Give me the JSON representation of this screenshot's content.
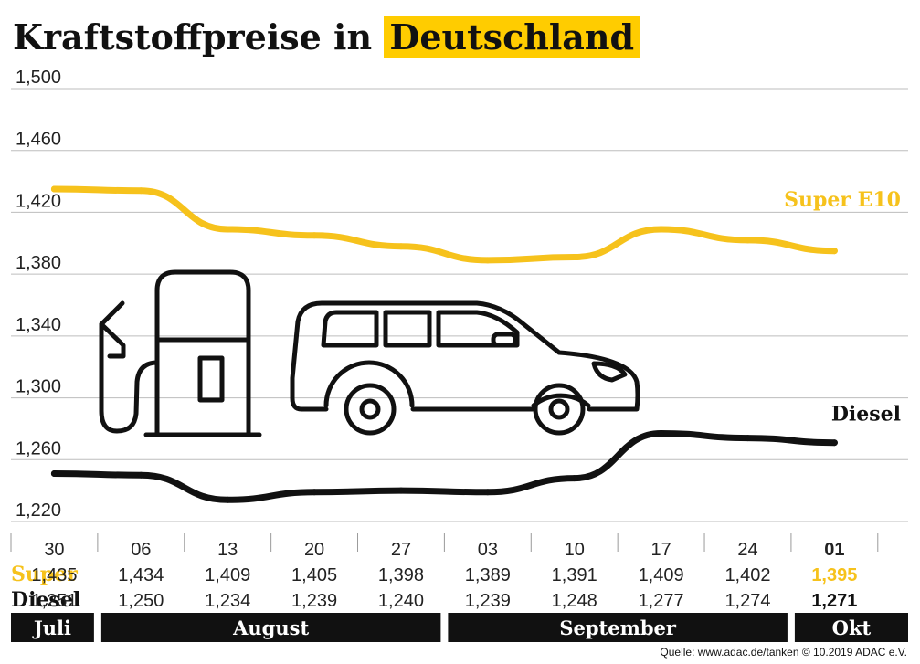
{
  "title_plain": "Kraftstoffpreise in",
  "title_highlight": "Deutschland",
  "source": "Quelle: www.adac.de/tanken  © 10.2019  ADAC e.V.",
  "colors": {
    "super": "#f6c21c",
    "diesel": "#111111",
    "accent": "#ffcc00",
    "grid": "#bdbdbd"
  },
  "chart_data": {
    "type": "line",
    "title": "Kraftstoffpreise in Deutschland",
    "categories": [
      "30",
      "06",
      "13",
      "20",
      "27",
      "03",
      "10",
      "17",
      "24",
      "01"
    ],
    "months": [
      {
        "name": "Juli",
        "start": 0,
        "end": 0
      },
      {
        "name": "August",
        "start": 1,
        "end": 4
      },
      {
        "name": "September",
        "start": 5,
        "end": 8
      },
      {
        "name": "Okt",
        "start": 9,
        "end": 9
      }
    ],
    "series": [
      {
        "name": "Super E10",
        "row_label": "Super",
        "values": [
          1.435,
          1.434,
          1.409,
          1.405,
          1.398,
          1.389,
          1.391,
          1.409,
          1.402,
          1.395
        ],
        "labels": [
          "1,435",
          "1,434",
          "1,409",
          "1,405",
          "1,398",
          "1,389",
          "1,391",
          "1,409",
          "1,402",
          "1,395"
        ]
      },
      {
        "name": "Diesel",
        "row_label": "Diesel",
        "values": [
          1.251,
          1.25,
          1.234,
          1.239,
          1.24,
          1.239,
          1.248,
          1.277,
          1.274,
          1.271
        ],
        "labels": [
          "1,251",
          "1,250",
          "1,234",
          "1,239",
          "1,240",
          "1,239",
          "1,248",
          "1,277",
          "1,274",
          "1,271"
        ]
      }
    ],
    "yticks": [
      1.22,
      1.26,
      1.3,
      1.34,
      1.38,
      1.42,
      1.46,
      1.5
    ],
    "ytick_labels": [
      "1,220",
      "1,260",
      "1,300",
      "1,340",
      "1,380",
      "1,420",
      "1,460",
      "1,500"
    ],
    "ylim": [
      1.22,
      1.5
    ],
    "grid": true,
    "icons": [
      "fuel-pump-icon",
      "car-icon"
    ]
  }
}
